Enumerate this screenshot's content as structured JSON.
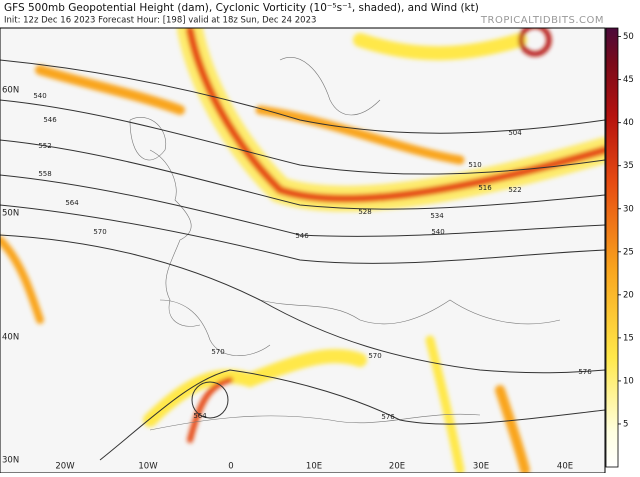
{
  "header": {
    "title": "GFS 500mb Geopotential Height (dam), Cyclonic Vorticity (10⁻⁵s⁻¹, shaded), and Wind (kt)",
    "subtitle": "Init: 12z Dec 16 2023   Forecast Hour: [198]   valid at 18z Sun, Dec 24 2023",
    "source": "TROPICALTIDBITS.COM"
  },
  "colorbar": {
    "range": [
      0,
      51
    ],
    "ticks": [
      5,
      10,
      15,
      20,
      25,
      30,
      35,
      40,
      45,
      50
    ]
  },
  "axes": {
    "lat_labels": [
      "60N",
      "50N",
      "40N",
      "30N"
    ],
    "lon_labels": [
      "20W",
      "10W",
      "0",
      "10E",
      "20E",
      "30E",
      "40E"
    ]
  },
  "contour_labels": [
    "540",
    "546",
    "552",
    "558",
    "564",
    "570",
    "504",
    "510",
    "516",
    "522",
    "528",
    "534",
    "540",
    "546",
    "570",
    "570",
    "564",
    "576",
    "576"
  ]
}
